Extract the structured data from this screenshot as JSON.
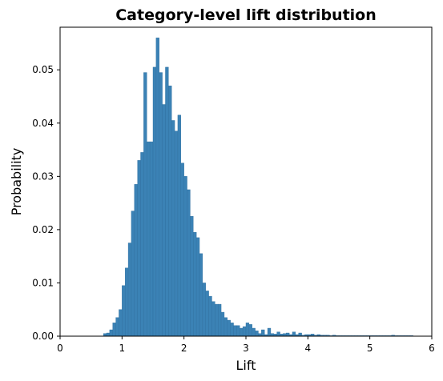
{
  "chart_data": {
    "type": "bar",
    "title": "Category-level lift distribution",
    "xlabel": "Lift",
    "ylabel": "Probability",
    "xlim": [
      0,
      6
    ],
    "ylim": [
      0,
      0.058
    ],
    "xticks": [
      0,
      1,
      2,
      3,
      4,
      5,
      6
    ],
    "xtick_labels": [
      "0",
      "1",
      "2",
      "3",
      "4",
      "5",
      "6"
    ],
    "yticks": [
      0.0,
      0.01,
      0.02,
      0.03,
      0.04,
      0.05
    ],
    "ytick_labels": [
      "0.00",
      "0.01",
      "0.02",
      "0.03",
      "0.04",
      "0.05"
    ],
    "grid": false,
    "bin_width": 0.05,
    "bin_start": 0.7,
    "values": [
      0.0005,
      0.0006,
      0.0012,
      0.0025,
      0.0035,
      0.005,
      0.0095,
      0.0128,
      0.0175,
      0.0235,
      0.0285,
      0.033,
      0.0345,
      0.0495,
      0.0365,
      0.0365,
      0.0505,
      0.056,
      0.0495,
      0.0435,
      0.0505,
      0.047,
      0.0405,
      0.0385,
      0.0415,
      0.0325,
      0.03,
      0.0275,
      0.0225,
      0.0195,
      0.0185,
      0.0155,
      0.01,
      0.0085,
      0.0075,
      0.0065,
      0.006,
      0.006,
      0.0045,
      0.0035,
      0.003,
      0.0025,
      0.002,
      0.002,
      0.0015,
      0.0018,
      0.0025,
      0.0022,
      0.0015,
      0.001,
      0.0005,
      0.0012,
      0.0003,
      0.0015,
      0.0005,
      0.0004,
      0.0008,
      0.0004,
      0.0005,
      0.0006,
      0.0003,
      0.0008,
      0.0003,
      0.0006,
      0.0002,
      0.0003,
      0.0003,
      0.0004,
      0.0002,
      0.0003,
      0.0002,
      0.0002,
      0.0002,
      0.0001,
      0.0002,
      0.0001,
      0.0001,
      0.0001,
      0.0001,
      0.0001,
      0.0001,
      0.0001,
      0.0001,
      0.0001,
      0.0001,
      0.0001,
      0.0001,
      0.0001,
      0.0001,
      0.0001,
      0.0001,
      0.0001,
      0.0001,
      0.0002,
      0.0001,
      0.0001,
      0.0001,
      0.0001,
      0.0001,
      0.0001
    ],
    "bar_color": "#3b82b5"
  }
}
